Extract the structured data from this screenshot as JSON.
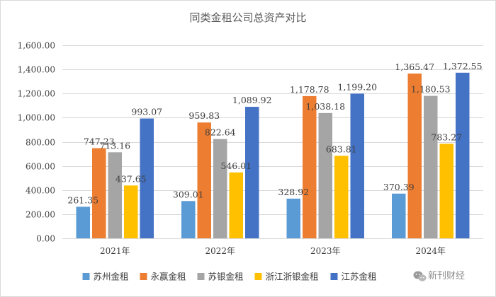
{
  "chart_data": {
    "type": "bar",
    "title": "同类金租公司总资产对比",
    "categories": [
      "2021年",
      "2022年",
      "2023年",
      "2024年"
    ],
    "series": [
      {
        "name": "苏州金租",
        "color": "#5b9bd5",
        "values": [
          261.35,
          309.01,
          328.92,
          370.39
        ],
        "labels": [
          "261.35",
          "309.01",
          "328.92",
          "370.39"
        ]
      },
      {
        "name": "永赢金租",
        "color": "#ed7d31",
        "values": [
          747.23,
          959.83,
          1178.78,
          1365.47
        ],
        "labels": [
          "747.23",
          "959.83",
          "1,178.78",
          "1,365.47"
        ]
      },
      {
        "name": "苏银金租",
        "color": "#a5a5a5",
        "values": [
          713.16,
          822.64,
          1038.18,
          1180.53
        ],
        "labels": [
          "713.16",
          "822.64",
          "1,038.18",
          "1,180.53"
        ]
      },
      {
        "name": "浙江浙银金租",
        "color": "#ffc000",
        "values": [
          437.65,
          546.01,
          683.81,
          783.27
        ],
        "labels": [
          "437.65",
          "546.01",
          "683.81",
          "783.27"
        ]
      },
      {
        "name": "江苏金租",
        "color": "#4472c4",
        "values": [
          993.07,
          1089.92,
          1199.2,
          1372.55
        ],
        "labels": [
          "993.07",
          "1,089.92",
          "1,199.20",
          "1,372.55"
        ]
      }
    ],
    "ylim": [
      0,
      1600
    ],
    "yticks": [
      0,
      200,
      400,
      600,
      800,
      1000,
      1200,
      1400,
      1600
    ],
    "ytick_labels": [
      "0.00",
      "200.00",
      "400.00",
      "600.00",
      "800.00",
      "1,000.00",
      "1,200.00",
      "1,400.00",
      "1,600.00"
    ],
    "xlabel": "",
    "ylabel": "",
    "grid": true,
    "legend_position": "bottom"
  },
  "watermark": {
    "text": "新刊财经",
    "icon": "wechat-icon"
  }
}
